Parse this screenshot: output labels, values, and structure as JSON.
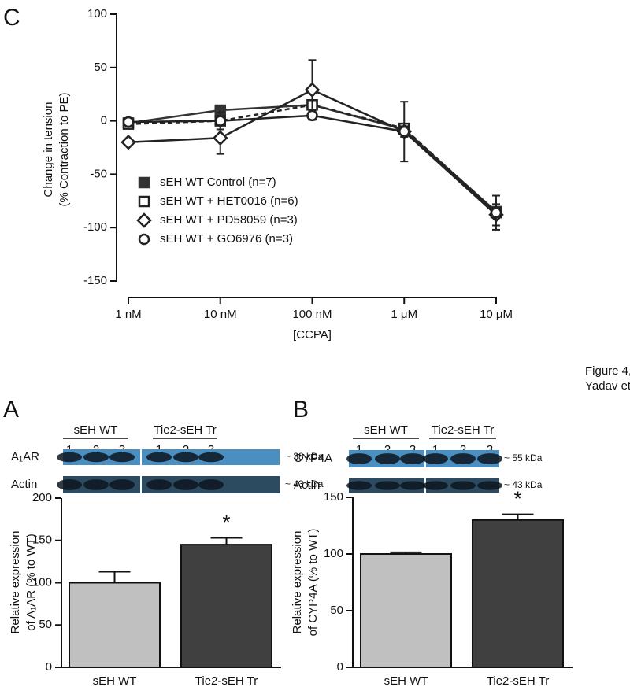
{
  "figure_note": [
    "Figure 4,",
    "Yadav et al"
  ],
  "chart_data": [
    {
      "type": "line",
      "panel": "C",
      "y_label": [
        "Change in tension",
        "(% Contraction to PE)"
      ],
      "x_label": "[CCPA]",
      "categories": [
        "1 nM",
        "10 nM",
        "100 nM",
        "1 μM",
        "10 μM"
      ],
      "ylim": [
        -150,
        100
      ],
      "yticks": [
        -150,
        -100,
        -50,
        0,
        50,
        100
      ],
      "series": [
        {
          "name": "sEH WT Control (n=7)",
          "color": "#333333",
          "marker": "square-filled",
          "dashed": false,
          "values": [
            -2,
            10,
            15,
            -8,
            -85
          ]
        },
        {
          "name": "sEH WT + HET0016 (n=6)",
          "color": "#222222",
          "marker": "square-open",
          "dashed": true,
          "values": [
            -3,
            0,
            15,
            -7,
            -86
          ]
        },
        {
          "name": "sEH WT + PD58059 (n=3)",
          "color": "#222222",
          "marker": "diamond-open",
          "dashed": false,
          "values": [
            -20,
            -16,
            29,
            -10,
            -88
          ],
          "errors": [
            2,
            15,
            28,
            5,
            10
          ]
        },
        {
          "name": "sEH WT + GO6976 (n=3)",
          "color": "#222222",
          "marker": "circle-open",
          "dashed": false,
          "values": [
            -1,
            0,
            5,
            -10,
            -86
          ],
          "errors": [
            2,
            8,
            4,
            28,
            16
          ]
        }
      ]
    },
    {
      "type": "bar",
      "panel": "A",
      "y_label": [
        "Relative expression",
        "of A₁AR (% to WT)"
      ],
      "categories": [
        "sEH WT",
        "Tie2-sEH Tr"
      ],
      "values": [
        100,
        145
      ],
      "errors": [
        13,
        8
      ],
      "colors": [
        "#c0c0c0",
        "#404040"
      ],
      "significance": [
        null,
        "*"
      ],
      "ylim": [
        0,
        200
      ],
      "yticks": [
        0,
        50,
        100,
        150,
        200
      ]
    },
    {
      "type": "bar",
      "panel": "B",
      "y_label": [
        "Relative expression",
        "of CYP4A (% to WT)"
      ],
      "categories": [
        "sEH WT",
        "Tie2-sEH Tr"
      ],
      "values": [
        100,
        130
      ],
      "errors": [
        1.5,
        5
      ],
      "colors": [
        "#c0c0c0",
        "#404040"
      ],
      "significance": [
        null,
        "*"
      ],
      "ylim": [
        0,
        150
      ],
      "yticks": [
        0,
        50,
        100,
        150
      ]
    }
  ],
  "blots": [
    {
      "groups": [
        {
          "name": "sEH WT",
          "lanes": [
            "1",
            "2",
            "3"
          ]
        },
        {
          "name": "Tie2-sEH Tr",
          "lanes": [
            "1",
            "2",
            "3"
          ]
        }
      ],
      "rows": [
        {
          "label": "A₁AR",
          "size": "~ 38 kDa"
        },
        {
          "label": "Actin",
          "size": "~ 43 kDa"
        }
      ]
    },
    {
      "groups": [
        {
          "name": "sEH WT",
          "lanes": [
            "1",
            "2",
            "3"
          ]
        },
        {
          "name": "Tie2-sEH Tr",
          "lanes": [
            "1",
            "2",
            "3"
          ]
        }
      ],
      "rows": [
        {
          "label": "CYP4A",
          "size": "~ 55 kDa"
        },
        {
          "label": "Actin",
          "size": "~ 43 kDa"
        }
      ]
    }
  ]
}
